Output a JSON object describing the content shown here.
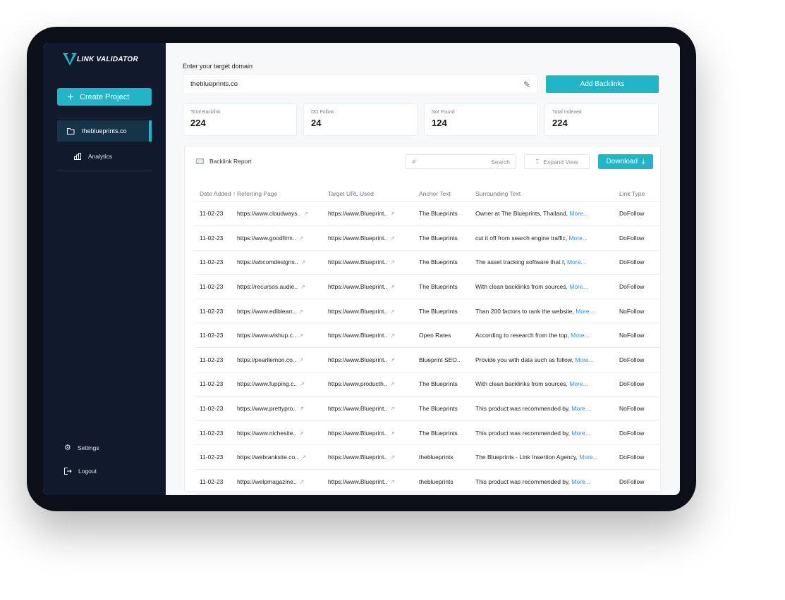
{
  "app": {
    "name": "LINK VALIDATOR"
  },
  "sidebar": {
    "create_label": "Create Project",
    "project": "theblueprints.co",
    "analytics": "Analytics",
    "settings": "Settings",
    "logout": "Logout"
  },
  "header": {
    "domain_label": "Enter your target domain",
    "domain_value": "theblueprints.co",
    "add_label": "Add Backlinks"
  },
  "stats": [
    {
      "label": "Total Backlink",
      "value": "224"
    },
    {
      "label": "DO Follow",
      "value": "24"
    },
    {
      "label": "Not Found",
      "value": "124"
    },
    {
      "label": "Total Indexed",
      "value": "224"
    }
  ],
  "report": {
    "title": "Backlink Report",
    "search_placeholder": "Search",
    "expand_label": "Expand View",
    "download_label": "Download"
  },
  "colors": {
    "accent": "#22b5c7",
    "sidebar": "#111a2c",
    "link": "#2a8fd8"
  },
  "table": {
    "columns": [
      "Date Added",
      "Referring Page",
      "Target URL Used",
      "Anchor Text",
      "Surrounding Text",
      "Link Type"
    ],
    "more_label": "More...",
    "rows": [
      {
        "date": "11-02-23",
        "ref": "https://www.cloudways..",
        "target": "https://www.Blueprint..",
        "anchor": "The Blueprints",
        "text": "Owner at The Blueprints, Thailand,",
        "type": "DoFollow"
      },
      {
        "date": "11-02-23",
        "ref": "https://www.goodfirm..",
        "target": "https://www.Blueprint..",
        "anchor": "The Blueprints",
        "text": "cut it off from search engine traffic,",
        "type": "DoFollow"
      },
      {
        "date": "11-02-23",
        "ref": "https://wbcomdesigns..",
        "target": "https://www.Blueprint..",
        "anchor": "The Blueprints",
        "text": "The asset tracking software that I,",
        "type": "DoFollow"
      },
      {
        "date": "11-02-23",
        "ref": "https://recursos.audie..",
        "target": "https://www.Blueprint..",
        "anchor": "The Blueprints",
        "text": "With clean backlinks from sources,",
        "type": "DoFollow"
      },
      {
        "date": "11-02-23",
        "ref": "https://www.ediblearr..",
        "target": "https://www.Blueprint..",
        "anchor": "The Blueprints",
        "text": "Than 200 factors to rank the website,",
        "type": "NoFollow"
      },
      {
        "date": "11-02-23",
        "ref": "https://www.wishup.c..",
        "target": "https://www.Blueprint..",
        "anchor": "Open Rates",
        "text": "According to research from the top,",
        "type": "NoFollow"
      },
      {
        "date": "11-02-23",
        "ref": "https://pearllemon.co..",
        "target": "https://www.Blueprint..",
        "anchor": "Blueprint SEO..",
        "text": "Provide you with data such as follow,",
        "type": "DoFollow"
      },
      {
        "date": "11-02-23",
        "ref": "https://www.fupping.c..",
        "target": "https://www.producth..",
        "anchor": "The Blueprints",
        "text": "With clean backlinks from sources,",
        "type": "DoFollow"
      },
      {
        "date": "11-02-23",
        "ref": "https://www.prettypro..",
        "target": "https://www.Blueprint..",
        "anchor": "The Blueprints",
        "text": "This product was recommended by,",
        "type": "NoFollow"
      },
      {
        "date": "11-02-23",
        "ref": "https://www.nichesite..",
        "target": "https://www.Blueprint..",
        "anchor": "The Blueprints",
        "text": "This product was recommended by,",
        "type": "DoFollow"
      },
      {
        "date": "11-02-23",
        "ref": "https://webranksite.co..",
        "target": "https://www.Blueprint..",
        "anchor": "theblueprints",
        "text": "The Blueprints - Link Insertion Agency,",
        "type": "DoFollow"
      },
      {
        "date": "11-02-23",
        "ref": "https://welpmagazine..",
        "target": "https://www.Blueprint..",
        "anchor": "theblueprints",
        "text": "This product was recommended by,",
        "type": "DoFollow"
      }
    ]
  }
}
